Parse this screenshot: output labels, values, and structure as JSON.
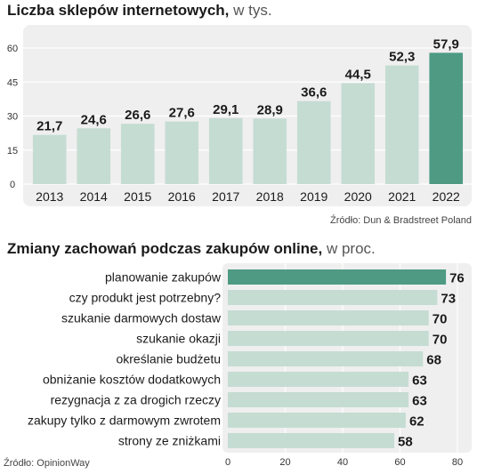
{
  "chart_data": [
    {
      "type": "bar",
      "title": "Liczba sklepów internetowych,",
      "unit": "w tys.",
      "categories": [
        "2013",
        "2014",
        "2015",
        "2016",
        "2017",
        "2018",
        "2019",
        "2020",
        "2021",
        "2022"
      ],
      "values": [
        21.7,
        24.6,
        26.6,
        27.6,
        29.1,
        28.9,
        36.6,
        44.5,
        52.3,
        57.9
      ],
      "value_labels": [
        "21,7",
        "24,6",
        "26,6",
        "27,6",
        "29,1",
        "28,9",
        "36,6",
        "44,5",
        "52,3",
        "57,9"
      ],
      "yticks": [
        0,
        15,
        30,
        45,
        60
      ],
      "ylim": [
        0,
        60
      ],
      "highlight_index": 9,
      "source": "Źródło: Dun & Bradstreet Poland"
    },
    {
      "type": "bar",
      "orientation": "horizontal",
      "title": "Zmiany zachowań podczas zakupów online,",
      "unit": "w proc.",
      "categories": [
        "planowanie zakupów",
        "czy produkt jest potrzebny?",
        "szukanie darmowych dostaw",
        "szukanie okazji",
        "określanie budżetu",
        "obniżanie kosztów dodatkowych",
        "rezygnacja z za drogich rzeczy",
        "zakupy tylko z darmowym zwrotem",
        "strony ze zniżkami"
      ],
      "values": [
        76,
        73,
        70,
        70,
        68,
        63,
        63,
        62,
        58
      ],
      "xticks": [
        0,
        20,
        40,
        60,
        80
      ],
      "xlim": [
        0,
        80
      ],
      "highlight_index": 0,
      "source": "Źródło: OpinionWay"
    }
  ],
  "colors": {
    "bar": "#c5dcd3",
    "highlight": "#4e9a83",
    "panel": "#efefef"
  }
}
